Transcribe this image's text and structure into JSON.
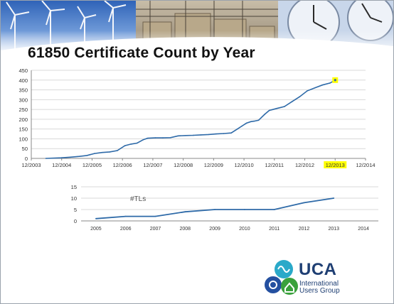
{
  "slide": {
    "title": "61850 Certificate Count by Year"
  },
  "logo": {
    "name": "UCA",
    "subtitle": "International\nUsers Group"
  },
  "chart_data": [
    {
      "type": "line",
      "title": "",
      "xlabel": "",
      "ylabel": "",
      "x_ticks": [
        "12/2003",
        "12/2004",
        "12/2005",
        "12/2006",
        "12/2007",
        "12/2008",
        "12/2009",
        "12/2010",
        "12/2011",
        "12/2012",
        "12/2013",
        "12/2014"
      ],
      "highlighted_tick": "12/2013",
      "highlight_color": "#ffff00",
      "line_color": "#2e6aa8",
      "xlim": [
        2003.92,
        2014.92
      ],
      "ylim": [
        0,
        450
      ],
      "y_ticks": [
        0,
        50,
        100,
        150,
        200,
        250,
        300,
        350,
        400,
        450
      ],
      "grid": true,
      "series": [
        {
          "name": "",
          "x": [
            2004.4,
            2004.9,
            2005.2,
            2005.5,
            2005.75,
            2006.0,
            2006.25,
            2006.5,
            2006.75,
            2007.0,
            2007.2,
            2007.4,
            2007.6,
            2007.75,
            2008.0,
            2008.25,
            2008.5,
            2008.75,
            2009.0,
            2009.25,
            2009.5,
            2009.75,
            2010.0,
            2010.25,
            2010.5,
            2010.7,
            2010.85,
            2011.0,
            2011.15,
            2011.25,
            2011.4,
            2011.6,
            2011.75,
            2012.0,
            2012.25,
            2012.5,
            2012.75,
            2013.0,
            2013.25,
            2013.5,
            2013.75,
            2013.92
          ],
          "y": [
            0,
            3,
            6,
            10,
            15,
            25,
            30,
            33,
            40,
            65,
            73,
            78,
            95,
            103,
            105,
            105,
            106,
            115,
            117,
            118,
            120,
            122,
            125,
            127,
            130,
            150,
            165,
            180,
            188,
            190,
            195,
            225,
            245,
            255,
            265,
            290,
            315,
            345,
            360,
            375,
            385,
            400
          ]
        }
      ],
      "highlight_point": {
        "x": 2013.92,
        "y": 400,
        "color": "#ffff00"
      }
    },
    {
      "type": "line",
      "title": "",
      "xlabel": "",
      "ylabel": "",
      "annotation": "#TLs",
      "x_ticks": [
        "2005",
        "2006",
        "2007",
        "2008",
        "2009",
        "2010",
        "2011",
        "2012",
        "2013",
        "2014"
      ],
      "xlim": [
        2004.5,
        2014.5
      ],
      "ylim": [
        0,
        15
      ],
      "y_ticks": [
        0,
        5,
        10,
        15
      ],
      "grid": true,
      "line_color": "#2e6aa8",
      "series": [
        {
          "name": "",
          "x": [
            2005,
            2006,
            2007,
            2008,
            2009,
            2010,
            2011,
            2012,
            2013
          ],
          "y": [
            1,
            2,
            2,
            4,
            5,
            5,
            5,
            8,
            10
          ]
        }
      ]
    }
  ]
}
